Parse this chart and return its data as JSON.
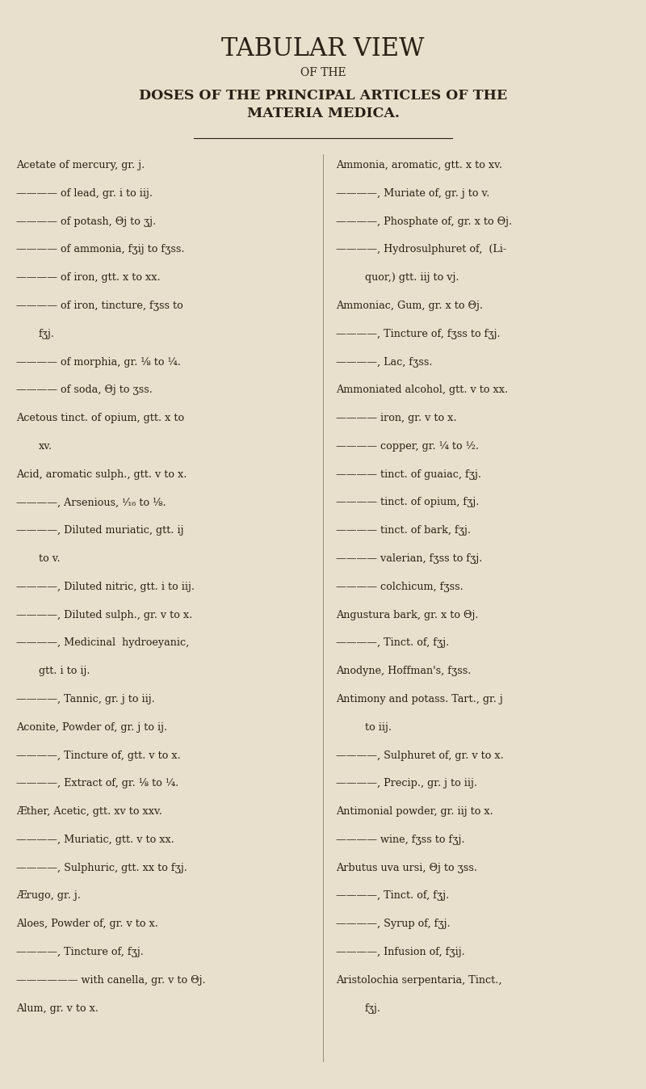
{
  "bg_color": "#e8e0cc",
  "text_color": "#2a2015",
  "title1": "TABULAR VIEW",
  "title2": "OF THE",
  "title3": "DOSES OF THE PRINCIPAL ARTICLES OF THE",
  "title4": "MATERIA MEDICA.",
  "left_col": [
    "Acetate of mercury, gr. j.",
    "———— of lead, gr. i to iij.",
    "———— of potash, Θj to ʒj.",
    "———— of ammonia, fʒij to fʒss.",
    "———— of iron, gtt. x to xx.",
    "———— of iron, tincture, fʒss to",
    "    fʒj.",
    "———— of morphia, gr. ⅛ to ¼.",
    "———— of soda, Θj to ʒss.",
    "Acetous tinct. of opium, gtt. x to",
    "    xv.",
    "Acid, aromatic sulph., gtt. v to x.",
    "————, Arsenious, ¹⁄₁₆ to ⅛.",
    "————, Diluted muriatic, gtt. ij",
    "    to v.",
    "————, Diluted nitric, gtt. i to iij.",
    "————, Diluted sulph., gr. v to x.",
    "————, Medicinal  hydroeyanic,",
    "    gtt. i to ij.",
    "————, Tannic, gr. j to iij.",
    "Aconite, Powder of, gr. j to ij.",
    "————, Tincture of, gtt. v to x.",
    "————, Extract of, gr. ⅛ to ¼.",
    "Æther, Acetic, gtt. xv to xxv.",
    "————, Muriatic, gtt. v to xx.",
    "————, Sulphuric, gtt. xx to fʒj.",
    "Ærugo, gr. j.",
    "Aloes, Powder of, gr. v to x.",
    "————, Tincture of, fʒj.",
    "—————— with canella, gr. v to Θj.",
    "Alum, gr. v to x."
  ],
  "right_col": [
    "Ammonia, aromatic, gtt. x to xv.",
    "————, Muriate of, gr. j to v.",
    "————, Phosphate of, gr. x to Θj.",
    "————, Hydrosulphuret of,  (Li-",
    "    quor,) gtt. iij to vj.",
    "Ammoniac, Gum, gr. x to Θj.",
    "————, Tincture of, fʒss to fʒj.",
    "————, Lac, fʒss.",
    "Ammoniated alcohol, gtt. v to xx.",
    "———— iron, gr. v to x.",
    "———— copper, gr. ¼ to ½.",
    "———— tinct. of guaiac, fʒj.",
    "———— tinct. of opium, fʒj.",
    "———— tinct. of bark, fʒj.",
    "———— valerian, fʒss to fʒj.",
    "———— colchicum, fʒss.",
    "Angustura bark, gr. x to Θj.",
    "————, Tinct. of, fʒj.",
    "Anodyne, Hoffman's, fʒss.",
    "Antimony and potass. Tart., gr. j",
    "    to iij.",
    "————, Sulphuret of, gr. v to x.",
    "————, Precip., gr. j to iij.",
    "Antimonial powder, gr. iij to x.",
    "———— wine, fʒss to fʒj.",
    "Arbutus uva ursi, Θj to ʒss.",
    "————, Tinct. of, fʒj.",
    "————, Syrup of, fʒj.",
    "————, Infusion of, fʒij.",
    "Aristolochia serpentaria, Tinct.,",
    "    fʒj."
  ]
}
